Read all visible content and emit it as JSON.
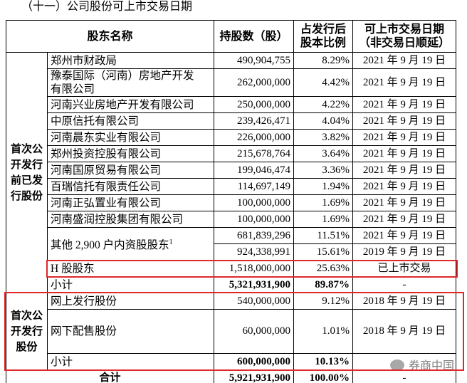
{
  "title": "（十一）公司股份可上市交易日期",
  "table": {
    "header": [
      [
        "股东名称"
      ],
      [
        "持股数（股）"
      ],
      [
        "占发行后",
        "股本比例"
      ],
      [
        "可上市交易日期",
        "（非交易日顺延）"
      ]
    ],
    "groups": [
      {
        "label": "首次公开发行前已发行股份",
        "rows": [
          {
            "name": "郑州市财政局",
            "entries": [
              [
                "490,904,755",
                "8.29%",
                "2021 年 9 月 19 日"
              ]
            ]
          },
          {
            "name": [
              "豫泰国际（河南）房地产开发",
              "有限公司"
            ],
            "entries": [
              [
                "262,000,000",
                "4.42%",
                "2021 年 9 月 19 日"
              ]
            ]
          },
          {
            "name": "河南兴业房地产开发有限公司",
            "entries": [
              [
                "250,000,000",
                "4.22%",
                "2021 年 9 月 19 日"
              ]
            ]
          },
          {
            "name": "中原信托有限公司",
            "entries": [
              [
                "239,426,471",
                "4.04%",
                "2021 年 9 月 19 日"
              ]
            ]
          },
          {
            "name": "河南晨东实业有限公司",
            "entries": [
              [
                "226,000,000",
                "3.82%",
                "2021 年 9 月 19 日"
              ]
            ]
          },
          {
            "name": "郑州投资控股有限公司",
            "entries": [
              [
                "215,678,764",
                "3.64%",
                "2021 年 9 月 19 日"
              ]
            ]
          },
          {
            "name": "河南国原贸易有限公司",
            "entries": [
              [
                "199,046,474",
                "3.36%",
                "2021 年 9 月 19 日"
              ]
            ]
          },
          {
            "name": "百瑞信托有限责任公司",
            "entries": [
              [
                "114,697,149",
                "1.94%",
                "2021 年 9 月 19 日"
              ]
            ]
          },
          {
            "name": "河南正弘置业有限公司",
            "entries": [
              [
                "100,000,000",
                "1.69%",
                "2021 年 9 月 19 日"
              ]
            ]
          },
          {
            "name": "河南盛润控股集团有限公司",
            "entries": [
              [
                "100,000,000",
                "1.69%",
                "2021 年 9 月 19 日"
              ]
            ]
          },
          {
            "name": "其他 2,900 户内资股股东",
            "note": "1",
            "entries": [
              [
                "681,839,296",
                "11.51%",
                "2021 年 9 月 19 日"
              ],
              [
                "924,338,991",
                "15.61%",
                "2019 年 9 月 19 日"
              ]
            ]
          },
          {
            "name": "H 股股东",
            "entries": [
              [
                "1,518,000,000",
                "25.63%",
                "已上市交易"
              ]
            ]
          }
        ],
        "subtotal": {
          "label": "小计",
          "shares": "5,321,931,900",
          "ratio": "89.87%",
          "date": "-"
        }
      },
      {
        "label": "首次公开发行股份",
        "rows": [
          {
            "name": "网上发行股份",
            "entries": [
              [
                "540,000,000",
                "9.12%",
                "2018 年 9 月 19 日"
              ]
            ]
          },
          {
            "name": "网下配售股份",
            "entries": [
              [
                "60,000,000",
                "1.01%",
                "2018 年 9 月 19 日"
              ]
            ]
          }
        ],
        "subtotal": {
          "label": "小计",
          "shares": "600,000,000",
          "ratio": "10.13%"
        }
      }
    ],
    "total": {
      "label": "合计",
      "shares": "5,921,931,900",
      "ratio": "100.00%",
      "date": "-"
    }
  },
  "watermark": "券商中国"
}
